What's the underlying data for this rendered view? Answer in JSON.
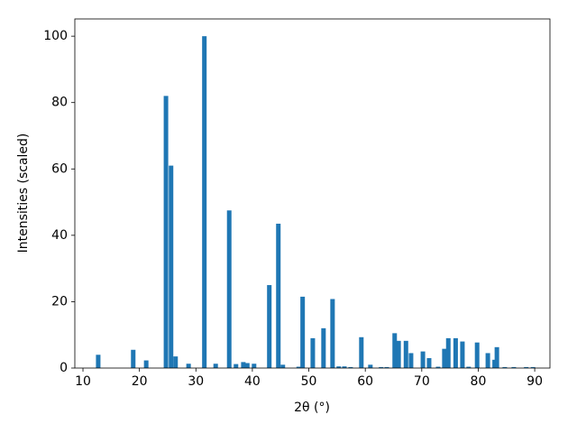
{
  "chart_data": {
    "type": "bar",
    "xlabel": "2θ (°)",
    "ylabel": "Intensities (scaled)",
    "color": "#1f77b4",
    "x": [
      12.7,
      18.9,
      21.2,
      24.7,
      25.6,
      26.4,
      28.7,
      31.5,
      33.5,
      35.9,
      37.1,
      38.4,
      39.1,
      40.3,
      43.0,
      44.6,
      45.4,
      48.2,
      48.9,
      50.7,
      52.6,
      54.2,
      55.3,
      56.3,
      57.4,
      59.3,
      60.9,
      62.8,
      63.8,
      65.2,
      65.9,
      67.2,
      68.1,
      70.2,
      71.3,
      72.9,
      74.0,
      74.7,
      76.0,
      77.2,
      78.3,
      79.8,
      81.7,
      82.9,
      83.3,
      84.7,
      86.3,
      88.5,
      89.7
    ],
    "values": [
      4,
      5.5,
      2.3,
      82,
      61,
      3.5,
      1.3,
      100,
      1.3,
      47.5,
      1.2,
      1.8,
      1.5,
      1.3,
      25,
      43.5,
      1,
      0.4,
      21.5,
      9,
      12,
      20.8,
      0.5,
      0.5,
      0.3,
      9.3,
      1,
      0.3,
      0.3,
      10.5,
      8.2,
      8.2,
      4.5,
      5,
      3,
      0.4,
      5.8,
      9,
      9,
      8,
      0.4,
      7.7,
      4.5,
      2.5,
      6.3,
      0.3,
      0.3,
      0.3,
      0.3
    ],
    "xlim": [
      8.56,
      92.7
    ],
    "ylim": [
      0,
      105.2
    ],
    "xticks": [
      10,
      20,
      30,
      40,
      50,
      60,
      70,
      80,
      90
    ],
    "yticks": [
      0,
      20,
      40,
      60,
      80,
      100
    ],
    "grid": false
  }
}
